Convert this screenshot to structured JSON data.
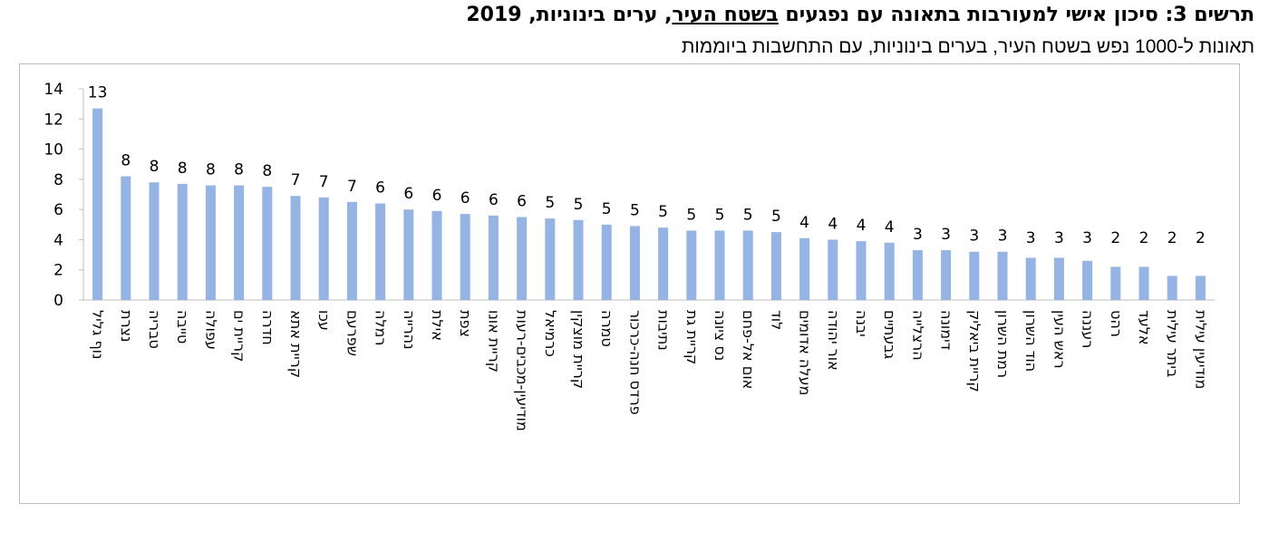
{
  "title": {
    "prefix": "תרשים 3: סיכון אישי למעורבות בתאונה עם נפגעים ",
    "underlined": "בשטח העיר",
    "suffix": ", ערים בינוניות, 2019"
  },
  "subtitle": "תאונות ל-1000 נפש בשטח העיר, בערים בינוניות, עם התחשבות ביוממות",
  "chart_data": {
    "type": "bar",
    "categories": [
      "נוף גליל",
      "נצרת",
      "טבריה",
      "טייבה",
      "עפולה",
      "קריית ים",
      "חדרה",
      "קריית אתא",
      "עכו",
      "שפרעם",
      "רמלה",
      "נהרייה",
      "אילת",
      "צפת",
      "קריית אונו",
      "מודיעין-מכבים-רעות",
      "כרמיאל",
      "קריית מוצקין",
      "טמרה",
      "פרדס חנה-כרכור",
      "נתיבות",
      "קריית גת",
      "נס ציונה",
      "אום אל-פחם",
      "לוד",
      "מעלה אדומים",
      "אור יהודה",
      "יבנה",
      "גבעתיים",
      "הרצלייה",
      "דימונה",
      "קריית ביאליק",
      "רמת השרון",
      "הוד השרון",
      "ראש העין",
      "רעננה",
      "רהט",
      "אלעד",
      "ביתר עילית",
      "מודיעין עילית"
    ],
    "values": [
      12.7,
      8.2,
      7.8,
      7.7,
      7.6,
      7.6,
      7.5,
      6.9,
      6.8,
      6.5,
      6.4,
      6.0,
      5.9,
      5.7,
      5.6,
      5.5,
      5.4,
      5.3,
      5.0,
      4.9,
      4.8,
      4.6,
      4.6,
      4.6,
      4.5,
      4.1,
      4.0,
      3.9,
      3.8,
      3.3,
      3.3,
      3.2,
      3.2,
      2.8,
      2.8,
      2.6,
      2.2,
      2.2,
      1.6,
      1.6
    ],
    "labels": [
      "13",
      "8",
      "8",
      "8",
      "8",
      "8",
      "8",
      "7",
      "7",
      "7",
      "6",
      "6",
      "6",
      "6",
      "6",
      "6",
      "5",
      "5",
      "5",
      "5",
      "5",
      "5",
      "5",
      "5",
      "5",
      "4",
      "4",
      "4",
      "4",
      "3",
      "3",
      "3",
      "3",
      "3",
      "3",
      "3",
      "2",
      "2",
      "2",
      "2"
    ],
    "yticks": [
      "0",
      "2",
      "4",
      "6",
      "8",
      "10",
      "12",
      "14"
    ],
    "ylim": [
      0,
      14
    ],
    "xlabel": "",
    "ylabel": "",
    "grid": false,
    "legend": "none",
    "bar_color": "#95b3e3",
    "axis_color": "#bfbfbf"
  }
}
